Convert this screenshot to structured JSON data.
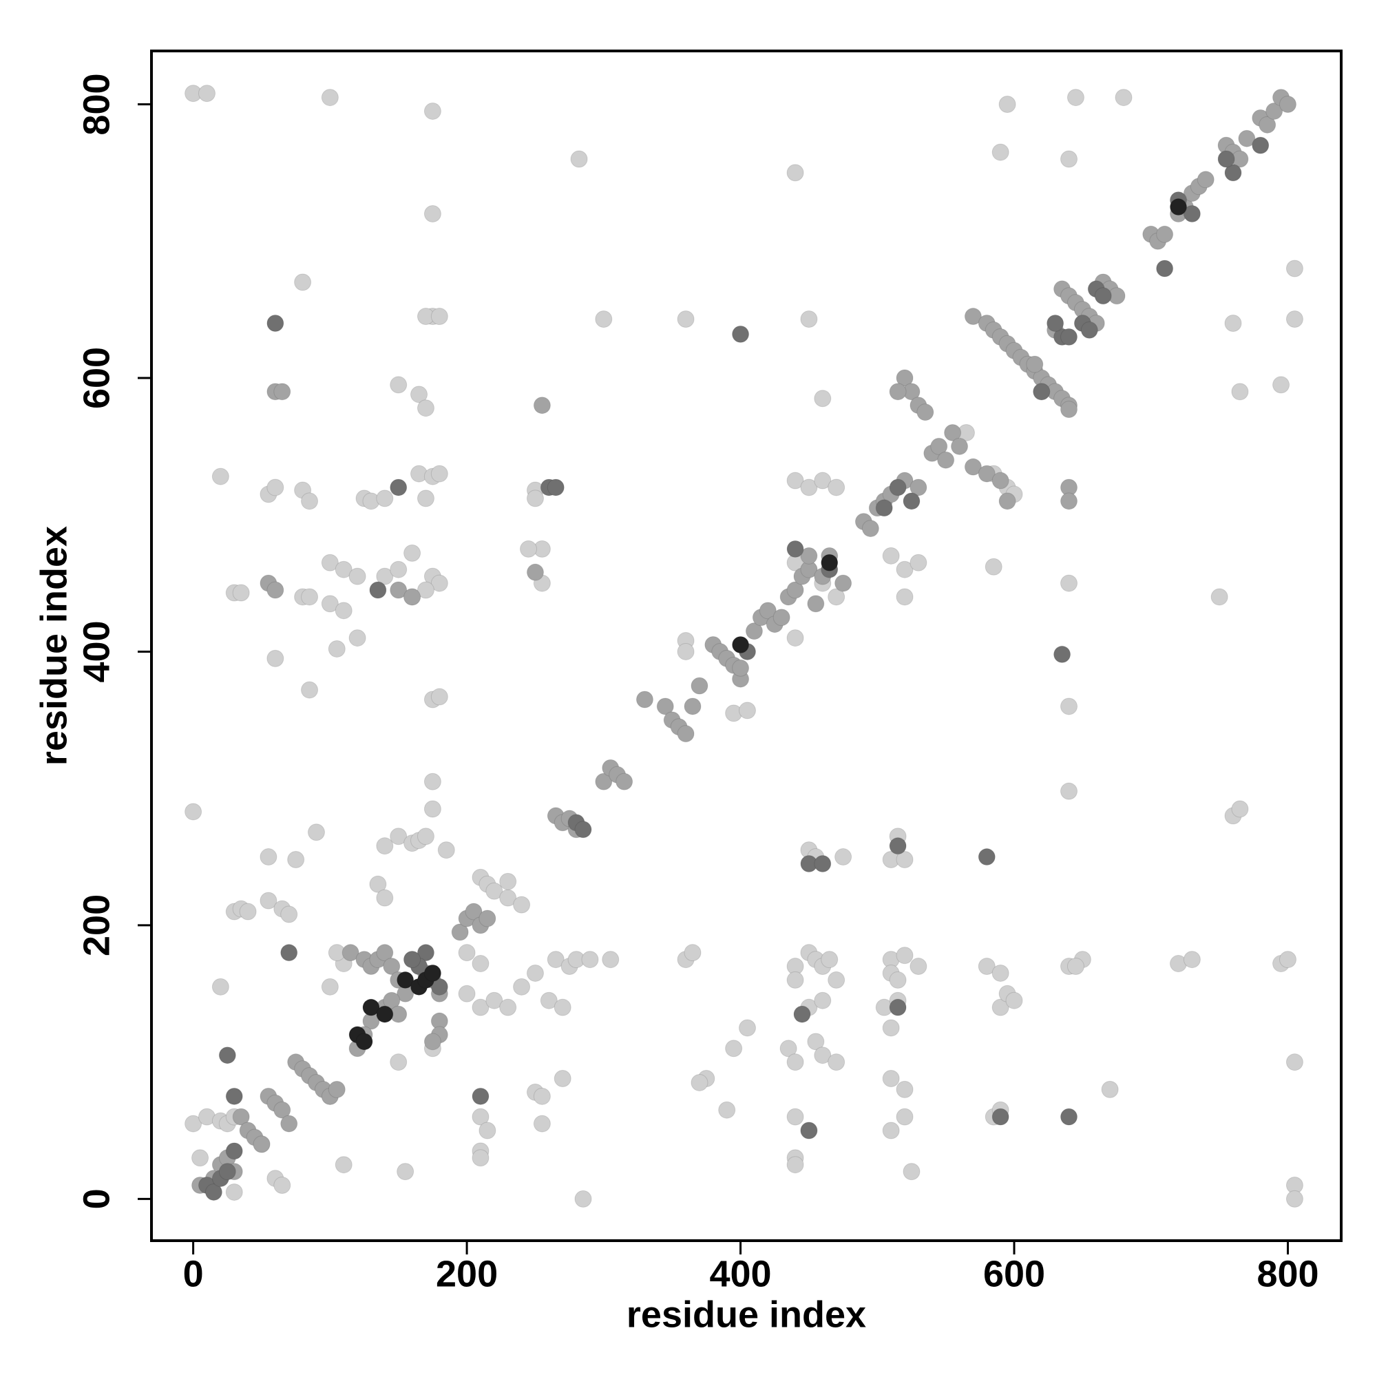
{
  "chart_data": {
    "type": "scatter",
    "xlabel": "residue index",
    "ylabel": "residue index",
    "xlim": [
      -30.5,
      839
    ],
    "ylim": [
      -30.5,
      839
    ],
    "xticks": [
      0,
      200,
      400,
      600,
      800
    ],
    "yticks": [
      0,
      200,
      400,
      600,
      800
    ],
    "grid": false,
    "series": [
      {
        "color": "#cfcfcf",
        "x": [
          0,
          10,
          100,
          175,
          175,
          175,
          170,
          180,
          282,
          440,
          595,
          590,
          640,
          645,
          680,
          760,
          765,
          795,
          805,
          805,
          80,
          300,
          360,
          450,
          150,
          165,
          170,
          20,
          55,
          60,
          80,
          85,
          125,
          130,
          140,
          165,
          175,
          180,
          170,
          250,
          250,
          255,
          245,
          255,
          100,
          110,
          120,
          140,
          150,
          160,
          175,
          180,
          30,
          35,
          80,
          85,
          100,
          110,
          105,
          120,
          60,
          85,
          175,
          180,
          160,
          170,
          440,
          450,
          460,
          470,
          440,
          450,
          460,
          470,
          440,
          460,
          510,
          520,
          520,
          530,
          595,
          600,
          585,
          750,
          640,
          640,
          360,
          360,
          395,
          405,
          0,
          90,
          75,
          55,
          30,
          35,
          55,
          65,
          70,
          40,
          135,
          140,
          140,
          150,
          160,
          165,
          170,
          175,
          175,
          185,
          210,
          215,
          220,
          230,
          240,
          230,
          450,
          455,
          475,
          510,
          520,
          515,
          640,
          760,
          765,
          20,
          0,
          5,
          10,
          20,
          25,
          30,
          50,
          60,
          30,
          65,
          155,
          100,
          110,
          105,
          150,
          175,
          200,
          210,
          200,
          210,
          220,
          230,
          240,
          260,
          270,
          265,
          275,
          285,
          280,
          290,
          305,
          250,
          250,
          255,
          270,
          255,
          210,
          215,
          210,
          210,
          110,
          100,
          440,
          450,
          455,
          460,
          465,
          470,
          440,
          450,
          460,
          455,
          460,
          470,
          435,
          440,
          405,
          395,
          390,
          440,
          450,
          440,
          440,
          375,
          370,
          360,
          365,
          510,
          510,
          520,
          530,
          515,
          505,
          510,
          515,
          520,
          510,
          520,
          510,
          525,
          580,
          590,
          590,
          595,
          600,
          585,
          590,
          640,
          650,
          645,
          720,
          730,
          795,
          800,
          805,
          805,
          805,
          670,
          585,
          565
        ],
        "y": [
          808,
          808,
          805,
          795,
          720,
          645,
          645,
          645,
          760,
          750,
          800,
          765,
          760,
          805,
          805,
          640,
          590,
          595,
          680,
          643,
          670,
          643,
          643,
          643,
          595,
          588,
          578,
          528,
          515,
          520,
          518,
          510,
          512,
          510,
          512,
          530,
          528,
          530,
          512,
          518,
          512,
          475,
          475,
          450,
          465,
          460,
          455,
          455,
          460,
          472,
          455,
          450,
          443,
          443,
          440,
          440,
          435,
          430,
          402,
          410,
          395,
          372,
          365,
          367,
          440,
          445,
          525,
          520,
          525,
          520,
          465,
          460,
          450,
          440,
          410,
          585,
          470,
          460,
          440,
          465,
          520,
          515,
          462,
          440,
          450,
          360,
          408,
          400,
          355,
          357,
          283,
          268,
          248,
          250,
          210,
          212,
          218,
          212,
          208,
          210,
          230,
          220,
          258,
          265,
          260,
          262,
          265,
          285,
          305,
          255,
          235,
          230,
          225,
          220,
          215,
          232,
          255,
          250,
          250,
          248,
          248,
          265,
          298,
          280,
          285,
          155,
          55,
          30,
          60,
          57,
          55,
          60,
          40,
          15,
          5,
          10,
          20,
          155,
          172,
          180,
          100,
          110,
          180,
          172,
          150,
          140,
          145,
          140,
          155,
          145,
          140,
          175,
          170,
          0,
          175,
          175,
          175,
          165,
          78,
          75,
          88,
          55,
          60,
          50,
          35,
          30,
          25,
          75,
          170,
          180,
          175,
          170,
          175,
          160,
          160,
          140,
          145,
          115,
          105,
          100,
          110,
          100,
          125,
          110,
          65,
          60,
          50,
          30,
          25,
          88,
          85,
          175,
          180,
          175,
          165,
          178,
          170,
          160,
          140,
          125,
          145,
          80,
          88,
          60,
          50,
          20,
          170,
          165,
          140,
          150,
          145,
          60,
          65,
          170,
          175,
          170,
          172,
          175,
          172,
          175,
          100,
          10,
          0,
          80,
          530,
          560
        ]
      },
      {
        "color": "#a3a3a3",
        "x": [
          5,
          15,
          20,
          25,
          30,
          35,
          40,
          45,
          50,
          55,
          60,
          65,
          70,
          75,
          80,
          85,
          90,
          95,
          100,
          105,
          115,
          125,
          130,
          135,
          140,
          145,
          150,
          155,
          160,
          165,
          170,
          175,
          180,
          180,
          180,
          175,
          130,
          125,
          120,
          140,
          145,
          150,
          195,
          200,
          205,
          210,
          215,
          265,
          270,
          275,
          280,
          300,
          305,
          310,
          315,
          330,
          345,
          350,
          355,
          360,
          365,
          370,
          380,
          385,
          390,
          395,
          400,
          410,
          415,
          420,
          425,
          430,
          435,
          440,
          445,
          450,
          455,
          460,
          465,
          475,
          490,
          495,
          500,
          505,
          510,
          520,
          530,
          540,
          545,
          550,
          555,
          560,
          570,
          580,
          585,
          590,
          595,
          600,
          605,
          610,
          615,
          620,
          625,
          630,
          635,
          640,
          640,
          630,
          635,
          640,
          645,
          650,
          655,
          660,
          665,
          670,
          675,
          700,
          705,
          710,
          720,
          725,
          730,
          735,
          740,
          755,
          760,
          765,
          770,
          780,
          785,
          790,
          795,
          800,
          570,
          580,
          590,
          520,
          525,
          530,
          535,
          515,
          150,
          160,
          250,
          255,
          55,
          60,
          60,
          65,
          400,
          595,
          640,
          640,
          450,
          615,
          620
        ],
        "y": [
          10,
          15,
          25,
          30,
          20,
          60,
          50,
          45,
          40,
          75,
          70,
          65,
          55,
          100,
          95,
          90,
          85,
          80,
          75,
          80,
          180,
          175,
          170,
          175,
          180,
          170,
          160,
          150,
          175,
          170,
          165,
          160,
          150,
          130,
          120,
          115,
          130,
          120,
          110,
          140,
          145,
          135,
          195,
          205,
          210,
          200,
          205,
          280,
          275,
          278,
          270,
          305,
          315,
          310,
          305,
          365,
          360,
          350,
          345,
          340,
          360,
          375,
          405,
          400,
          395,
          390,
          380,
          415,
          425,
          430,
          420,
          425,
          440,
          445,
          455,
          460,
          435,
          455,
          470,
          450,
          495,
          490,
          505,
          510,
          515,
          525,
          520,
          545,
          550,
          540,
          560,
          550,
          645,
          640,
          635,
          630,
          625,
          620,
          615,
          610,
          605,
          600,
          595,
          590,
          585,
          580,
          577,
          635,
          665,
          660,
          655,
          650,
          645,
          640,
          670,
          665,
          660,
          705,
          700,
          705,
          720,
          725,
          735,
          740,
          745,
          770,
          765,
          760,
          775,
          790,
          785,
          795,
          805,
          800,
          535,
          530,
          525,
          600,
          590,
          580,
          575,
          590,
          445,
          440,
          458,
          580,
          450,
          445,
          590,
          590,
          388,
          510,
          520,
          510,
          470,
          610,
          590
        ]
      },
      {
        "color": "#707070",
        "x": [
          10,
          15,
          20,
          30,
          25,
          60,
          400,
          635,
          580,
          640,
          710,
          760,
          755,
          780,
          720,
          730,
          650,
          655,
          660,
          665,
          635,
          640,
          505,
          515,
          525,
          630,
          440,
          465,
          260,
          150,
          135,
          170,
          165,
          175,
          180,
          160,
          620,
          515,
          70,
          30,
          25,
          210,
          265,
          450,
          460,
          515,
          590,
          445,
          450,
          405,
          280,
          285
        ],
        "y": [
          10,
          5,
          15,
          35,
          20,
          640,
          632,
          398,
          250,
          60,
          680,
          750,
          760,
          770,
          730,
          720,
          640,
          635,
          665,
          660,
          630,
          630,
          505,
          520,
          510,
          640,
          475,
          460,
          520,
          520,
          445,
          180,
          170,
          165,
          155,
          175,
          590,
          140,
          180,
          75,
          105,
          75,
          520,
          245,
          245,
          258,
          60,
          135,
          50,
          400,
          275,
          270
        ]
      },
      {
        "color": "#222222",
        "x": [
          120,
          125,
          130,
          155,
          165,
          170,
          175,
          720,
          465,
          400,
          140
        ],
        "y": [
          120,
          115,
          140,
          160,
          155,
          160,
          165,
          725,
          465,
          405,
          135
        ]
      }
    ]
  }
}
